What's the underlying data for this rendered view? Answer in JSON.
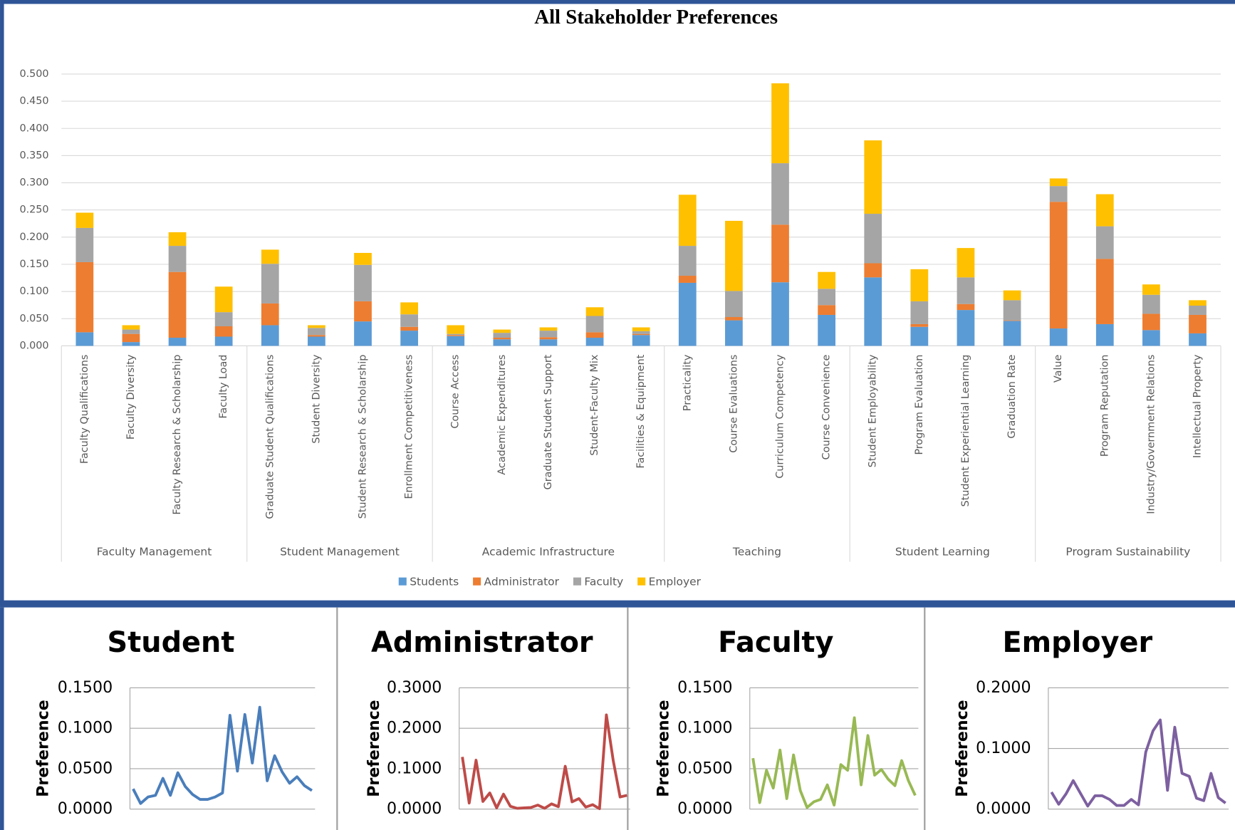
{
  "chart_data": [
    {
      "type": "stacked-bar",
      "title": "All Stakeholder Preferences",
      "groups": [
        {
          "name": "Faculty Management",
          "categories": [
            "Faculty Qualifications",
            "Faculty Diversity",
            "Faculty Research & Scholarship",
            "Faculty Load"
          ]
        },
        {
          "name": "Student Management",
          "categories": [
            "Graduate Student Qualifications",
            "Student Diversity",
            "Student Research & Scholarship",
            "Enrollment Competitiveness"
          ]
        },
        {
          "name": "Academic Infrastructure",
          "categories": [
            "Course Access",
            "Academic Expenditures",
            "Graduate Student Support",
            "Student-Faculty Mix",
            "Facilities & Equipment"
          ]
        },
        {
          "name": "Teaching",
          "categories": [
            "Practicality",
            "Course Evaluations",
            "Curriculum Competency",
            "Course Convenience"
          ]
        },
        {
          "name": "Student Learning",
          "categories": [
            "Student Employability",
            "Program Evaluation",
            "Student Experiential Learning",
            "Graduation Rate"
          ]
        },
        {
          "name": "Program Sustainability",
          "categories": [
            "Value",
            "Program Reputation",
            "Industry/Government Relations",
            "Intellectual Property"
          ]
        }
      ],
      "series": [
        {
          "name": "Students",
          "color": "#5b9bd5",
          "values": [
            0.025,
            0.007,
            0.015,
            0.017,
            0.038,
            0.017,
            0.045,
            0.028,
            0.018,
            0.012,
            0.012,
            0.015,
            0.02,
            0.116,
            0.047,
            0.117,
            0.057,
            0.126,
            0.035,
            0.066,
            0.046,
            0.032,
            0.04,
            0.029,
            0.023
          ]
        },
        {
          "name": "Administrator",
          "color": "#ed7d31",
          "values": [
            0.129,
            0.015,
            0.121,
            0.019,
            0.04,
            0.003,
            0.037,
            0.007,
            0.002,
            0.003,
            0.004,
            0.01,
            0.002,
            0.013,
            0.006,
            0.106,
            0.018,
            0.026,
            0.005,
            0.011,
            0.001,
            0.233,
            0.12,
            0.03,
            0.034
          ]
        },
        {
          "name": "Faculty",
          "color": "#a5a5a5",
          "values": [
            0.063,
            0.008,
            0.048,
            0.026,
            0.073,
            0.013,
            0.067,
            0.023,
            0.002,
            0.009,
            0.012,
            0.03,
            0.005,
            0.055,
            0.048,
            0.113,
            0.03,
            0.091,
            0.042,
            0.049,
            0.037,
            0.029,
            0.06,
            0.035,
            0.017
          ]
        },
        {
          "name": "Employer",
          "color": "#ffc000",
          "values": [
            0.028,
            0.008,
            0.025,
            0.047,
            0.026,
            0.005,
            0.022,
            0.022,
            0.016,
            0.006,
            0.006,
            0.016,
            0.007,
            0.094,
            0.129,
            0.147,
            0.031,
            0.135,
            0.059,
            0.054,
            0.018,
            0.014,
            0.059,
            0.019,
            0.01
          ]
        }
      ],
      "ylim": [
        0,
        0.5
      ],
      "yticks": [
        {
          "value": 0,
          "label": "0.000"
        },
        {
          "value": 0.05,
          "label": "0.050"
        },
        {
          "value": 0.1,
          "label": "0.100"
        },
        {
          "value": 0.15,
          "label": "0.150"
        },
        {
          "value": 0.2,
          "label": "0.200"
        },
        {
          "value": 0.25,
          "label": "0.250"
        },
        {
          "value": 0.3,
          "label": "0.300"
        },
        {
          "value": 0.35,
          "label": "0.350"
        },
        {
          "value": 0.4,
          "label": "0.400"
        },
        {
          "value": 0.45,
          "label": "0.450"
        },
        {
          "value": 0.5,
          "label": "0.500"
        }
      ],
      "grid": true,
      "legend": "bottom"
    },
    {
      "type": "line",
      "title": "Student",
      "ylabel": "Preference",
      "color": "#4a7ebb",
      "values": [
        0.025,
        0.007,
        0.015,
        0.017,
        0.038,
        0.017,
        0.045,
        0.028,
        0.018,
        0.012,
        0.012,
        0.015,
        0.02,
        0.116,
        0.047,
        0.117,
        0.057,
        0.126,
        0.035,
        0.066,
        0.046,
        0.032,
        0.04,
        0.029,
        0.023
      ],
      "ylim": [
        0,
        0.15
      ],
      "yticks": [
        {
          "value": 0,
          "label": "0.0000"
        },
        {
          "value": 0.05,
          "label": "0.0500"
        },
        {
          "value": 0.1,
          "label": "0.1000"
        },
        {
          "value": 0.15,
          "label": "0.1500"
        }
      ],
      "grid": true
    },
    {
      "type": "line",
      "title": "Administrator",
      "ylabel": "Preference",
      "color": "#be4b48",
      "values": [
        0.129,
        0.015,
        0.121,
        0.019,
        0.04,
        0.003,
        0.037,
        0.007,
        0.002,
        0.003,
        0.004,
        0.01,
        0.002,
        0.013,
        0.006,
        0.106,
        0.018,
        0.026,
        0.005,
        0.011,
        0.001,
        0.233,
        0.12,
        0.03,
        0.034
      ],
      "ylim": [
        0,
        0.3
      ],
      "yticks": [
        {
          "value": 0,
          "label": "0.0000"
        },
        {
          "value": 0.1,
          "label": "0.1000"
        },
        {
          "value": 0.2,
          "label": "0.2000"
        },
        {
          "value": 0.3,
          "label": "0.3000"
        }
      ],
      "grid": true
    },
    {
      "type": "line",
      "title": "Faculty",
      "ylabel": "Preference",
      "color": "#98b954",
      "values": [
        0.063,
        0.008,
        0.048,
        0.026,
        0.073,
        0.013,
        0.067,
        0.023,
        0.002,
        0.009,
        0.012,
        0.03,
        0.005,
        0.055,
        0.048,
        0.113,
        0.03,
        0.091,
        0.042,
        0.049,
        0.037,
        0.029,
        0.06,
        0.035,
        0.017
      ],
      "ylim": [
        0,
        0.15
      ],
      "yticks": [
        {
          "value": 0,
          "label": "0.0000"
        },
        {
          "value": 0.05,
          "label": "0.0500"
        },
        {
          "value": 0.1,
          "label": "0.1000"
        },
        {
          "value": 0.15,
          "label": "0.1500"
        }
      ],
      "grid": true
    },
    {
      "type": "line",
      "title": "Employer",
      "ylabel": "Preference",
      "color": "#7d60a0",
      "values": [
        0.028,
        0.008,
        0.025,
        0.047,
        0.026,
        0.005,
        0.022,
        0.022,
        0.016,
        0.006,
        0.006,
        0.016,
        0.007,
        0.094,
        0.129,
        0.147,
        0.031,
        0.135,
        0.059,
        0.054,
        0.018,
        0.014,
        0.059,
        0.019,
        0.01
      ],
      "ylim": [
        0,
        0.2
      ],
      "yticks": [
        {
          "value": 0,
          "label": "0.0000"
        },
        {
          "value": 0.1,
          "label": "0.1000"
        },
        {
          "value": 0.2,
          "label": "0.2000"
        }
      ],
      "grid": true
    }
  ]
}
